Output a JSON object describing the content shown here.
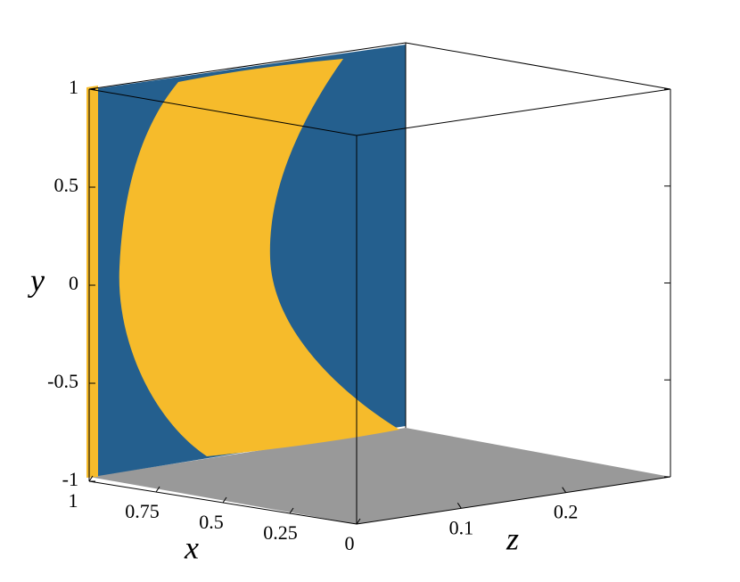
{
  "chart_data": {
    "type": "surface3d",
    "xlabel": "x",
    "ylabel": "y",
    "zlabel": "z",
    "xlim": [
      0,
      1
    ],
    "xticks": [
      1,
      0.75,
      0.5,
      0.25,
      0
    ],
    "ylim": [
      -1,
      1
    ],
    "yticks": [
      1,
      0.5,
      0,
      -0.5,
      -1
    ],
    "zlim": [
      0,
      0.3
    ],
    "zticks": [
      0.1,
      0.2
    ],
    "colors": [
      "#245f8e",
      "#f6bb2b"
    ],
    "floor_color": "#999999"
  }
}
